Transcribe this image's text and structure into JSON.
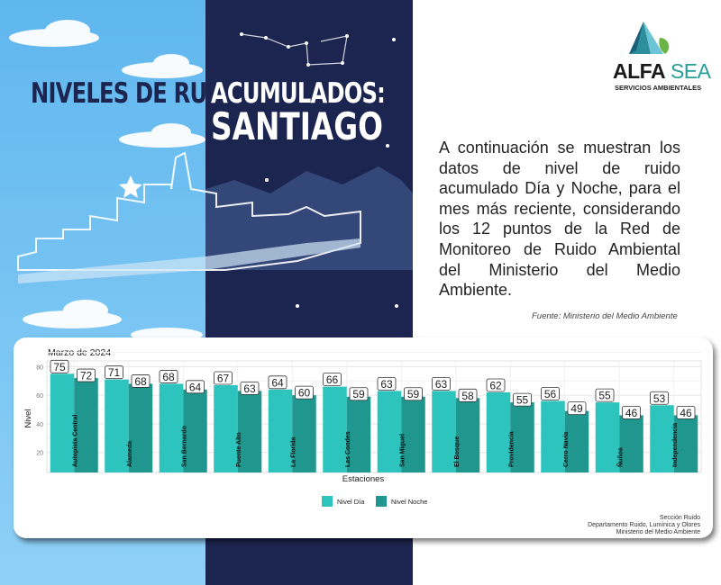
{
  "header": {
    "title_part1": "NIVELES DE RUIDO",
    "title_part2": "ACUMULADOS:",
    "title_city": "SANTIAGO"
  },
  "logo": {
    "name_bold": "ALFA",
    "name_light": "SEA",
    "tagline": "SERVICIOS AMBIENTALES"
  },
  "description": "A continuación se muestran los datos de nivel de ruido acumulado Día y Noche, para el mes más reciente, considerando los 12 puntos de la Red de Monitoreo de Ruido Ambiental del Ministerio del Medio Ambiente.",
  "source": "Fuente: Ministerio del Medio Ambiente",
  "colors": {
    "sky": "#6fc2f2",
    "navy": "#1c2550",
    "dia": "#2cc4bd",
    "noche": "#1f978e"
  },
  "chart_data": {
    "type": "bar",
    "title": "Marzo de 2024",
    "xlabel": "Estaciones",
    "ylabel": "Nivel",
    "ylim": [
      6,
      84
    ],
    "yticks": [
      20,
      40,
      60,
      80
    ],
    "grid": true,
    "legend_position": "bottom",
    "categories": [
      "Autopista Central",
      "Alameda",
      "San Bernardo",
      "Puente Alto",
      "La Florida",
      "Las Condes",
      "San Miguel",
      "El Bosque",
      "Providencia",
      "Cerro Navia",
      "Ñuñoa",
      "Independencia"
    ],
    "series": [
      {
        "name": "Nivel Día",
        "color": "#2cc4bd",
        "values": [
          75,
          71,
          68,
          67,
          64,
          66,
          63,
          63,
          62,
          56,
          55,
          53
        ]
      },
      {
        "name": "Nivel Noche",
        "color": "#1f978e",
        "values": [
          72,
          68,
          64,
          63,
          60,
          59,
          59,
          58,
          55,
          49,
          46,
          46
        ]
      }
    ]
  },
  "footer": {
    "line1": "Sección Ruido",
    "line2": "Departamento Ruido, Lumínica y Olores",
    "line3": "Ministerio del Medio Ambiente"
  }
}
